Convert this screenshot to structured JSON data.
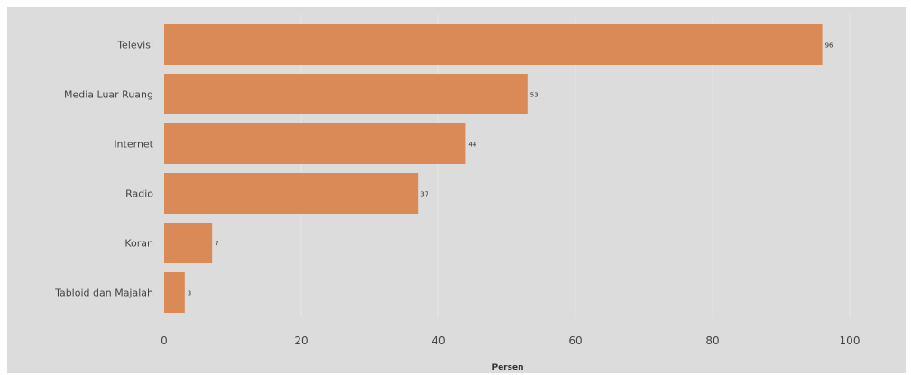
{
  "chart_data": {
    "type": "bar",
    "orientation": "horizontal",
    "categories": [
      "Televisi",
      "Media Luar Ruang",
      "Internet",
      "Radio",
      "Koran",
      "Tabloid dan Majalah"
    ],
    "values": [
      96,
      53,
      44,
      37,
      7,
      3
    ],
    "data_labels": [
      "96",
      "53",
      "44",
      "37",
      "7",
      "3"
    ],
    "xlabel": "Persen",
    "ylabel": "",
    "xlim": [
      0,
      100
    ],
    "x_ticks": [
      0,
      20,
      40,
      60,
      80,
      100
    ],
    "x_tick_labels": [
      "0",
      "20",
      "40",
      "60",
      "80",
      "100"
    ],
    "grid": "vertical",
    "legend": "none"
  },
  "colors": {
    "bar": "#d98a56",
    "background": "#dcdcdc",
    "gridline": "#e6e6e6",
    "text": "#444444"
  }
}
